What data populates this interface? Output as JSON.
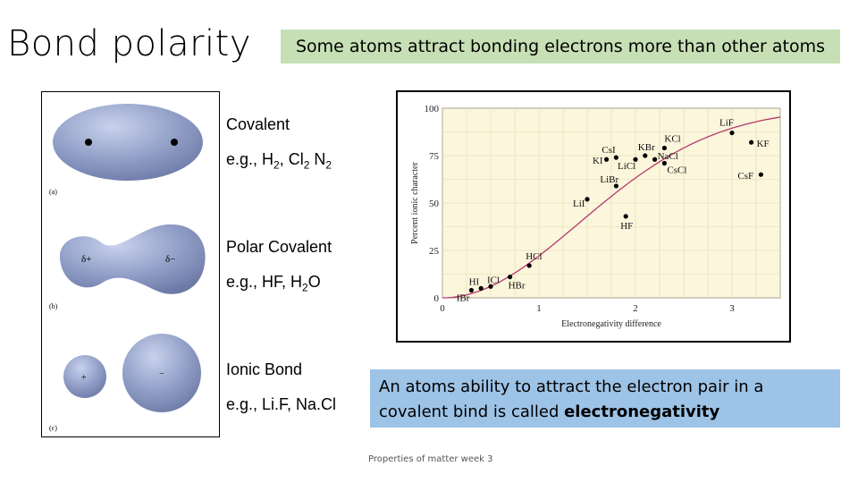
{
  "slide": {
    "title": "Bond polarity",
    "callout_top": "Some atoms attract bonding electrons more than other atoms",
    "footer": "Properties of matter week 3"
  },
  "figure": {
    "panel_a": "(a)",
    "panel_b": "(b)",
    "panel_c": "(c)",
    "delta_plus": "δ+",
    "delta_minus": "δ−",
    "ion_plus": "+",
    "ion_minus": "−",
    "colors": {
      "lobe": "#8f9dc6",
      "lobe_light": "#c9d1ec",
      "lobe_dark": "#6d7aa6"
    }
  },
  "bond_types": {
    "covalent": {
      "name": "Covalent",
      "examples": "e.g., H2, Cl2 N2"
    },
    "polar": {
      "name": "Polar Covalent",
      "examples": "e.g., HF, H2O"
    },
    "ionic": {
      "name": "Ionic Bond",
      "examples": "e.g., Li.F, Na.Cl"
    }
  },
  "callout_bottom": {
    "text_before": "An atoms ability to attract the electron pair in a covalent bind is called ",
    "bold_term": "electronegativity"
  },
  "chart_data": {
    "type": "scatter",
    "xlabel": "Electronegativity difference",
    "ylabel": "Percent ionic character",
    "xlim": [
      0,
      3.5
    ],
    "ylim": [
      0,
      100
    ],
    "xticks": [
      0,
      1,
      2,
      3
    ],
    "yticks": [
      0,
      25,
      50,
      75,
      100
    ],
    "grid": true,
    "background": "#fbf6dc",
    "curve_color": "#b5386b",
    "points": [
      {
        "label": "IBr",
        "x": 0.3,
        "y": 4
      },
      {
        "label": "HI",
        "x": 0.4,
        "y": 5
      },
      {
        "label": "ICl",
        "x": 0.5,
        "y": 6
      },
      {
        "label": "HBr",
        "x": 0.7,
        "y": 11
      },
      {
        "label": "HCl",
        "x": 0.9,
        "y": 17
      },
      {
        "label": "HF",
        "x": 1.9,
        "y": 43
      },
      {
        "label": "LiI",
        "x": 1.5,
        "y": 52
      },
      {
        "label": "LiBr",
        "x": 1.8,
        "y": 59
      },
      {
        "label": "KI",
        "x": 1.7,
        "y": 73
      },
      {
        "label": "CsI",
        "x": 1.8,
        "y": 74
      },
      {
        "label": "LiCl",
        "x": 2.0,
        "y": 73
      },
      {
        "label": "KBr",
        "x": 2.1,
        "y": 75
      },
      {
        "label": "NaCl",
        "x": 2.2,
        "y": 73
      },
      {
        "label": "KCl",
        "x": 2.3,
        "y": 79
      },
      {
        "label": "CsCl",
        "x": 2.3,
        "y": 71
      },
      {
        "label": "LiF",
        "x": 3.0,
        "y": 87
      },
      {
        "label": "KF",
        "x": 3.2,
        "y": 82
      },
      {
        "label": "CsF",
        "x": 3.3,
        "y": 65
      }
    ]
  }
}
